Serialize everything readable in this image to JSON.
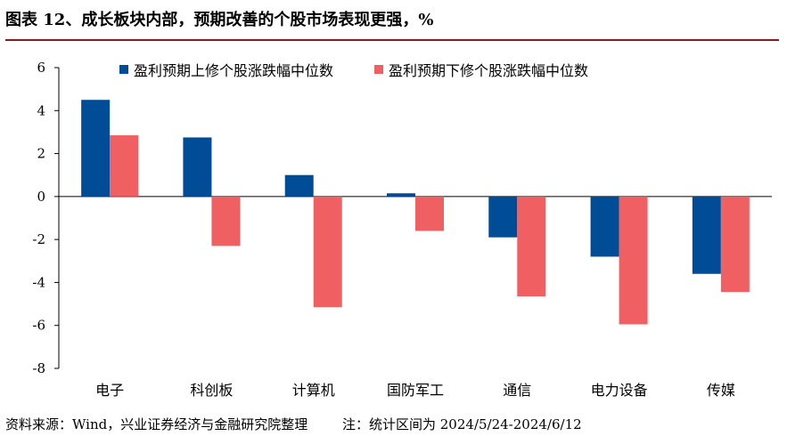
{
  "title": "图表 12、成长板块内部，预期改善的个股市场表现更强，%",
  "footer": {
    "source": "资料来源：Wind，兴业证券经济与金融研究院整理",
    "note": "注：统计区间为 2024/5/24-2024/6/12"
  },
  "colors": {
    "series_up": "#004c97",
    "series_down": "#f06063",
    "title_rule": "#8c1a1a"
  },
  "chart_data": {
    "type": "bar",
    "title": "",
    "xlabel": "",
    "ylabel": "",
    "categories": [
      "电子",
      "科创板",
      "计算机",
      "国防军工",
      "通信",
      "电力设备",
      "传媒"
    ],
    "series": [
      {
        "name": "盈利预期上修个股涨跌幅中位数",
        "values": [
          4.5,
          2.75,
          1.0,
          0.15,
          -1.9,
          -2.8,
          -3.6
        ]
      },
      {
        "name": "盈利预期下修个股涨跌幅中位数",
        "values": [
          2.85,
          -2.3,
          -5.15,
          -1.6,
          -4.65,
          -5.95,
          -4.45
        ]
      }
    ],
    "ylim": [
      -8,
      6
    ],
    "yticks": [
      -8,
      -6,
      -4,
      -2,
      0,
      2,
      4,
      6
    ],
    "legend": "top",
    "grid": false
  }
}
